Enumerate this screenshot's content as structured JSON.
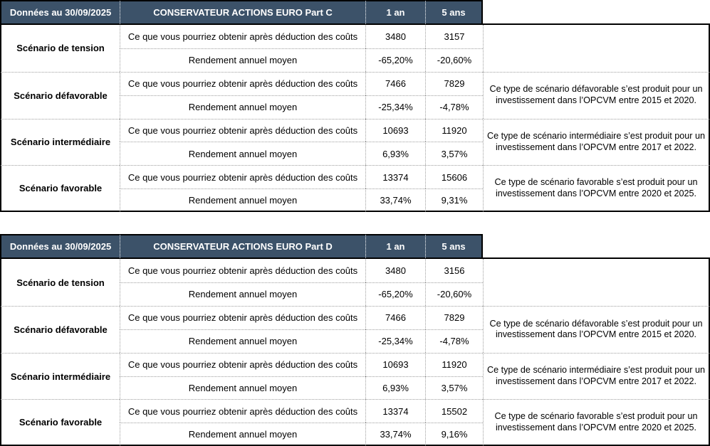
{
  "colors": {
    "header_bg": "#3C5269",
    "header_text": "#FFFFFF",
    "border_dark": "#000000",
    "border_dotted": "#9E9E9E",
    "body_text": "#000000"
  },
  "tables": [
    {
      "date_label": "Données au 30/09/2025",
      "title": "CONSERVATEUR ACTIONS EURO Part C",
      "col_1y": "1 an",
      "col_5y": "5 ans",
      "obtain_label": "Ce que vous pourriez obtenir après déduction des coûts",
      "yield_label": "Rendement annuel moyen",
      "scenarios": [
        {
          "name": "Scénario de tension",
          "obtain_1y": "3480",
          "obtain_5y": "3157",
          "yield_1y": "-65,20%",
          "yield_5y": "-20,60%",
          "comment": ""
        },
        {
          "name": "Scénario défavorable",
          "obtain_1y": "7466",
          "obtain_5y": "7829",
          "yield_1y": "-25,34%",
          "yield_5y": "-4,78%",
          "comment": "Ce type de scénario défavorable s’est produit pour un investissement dans l’OPCVM entre 2015 et 2020."
        },
        {
          "name": "Scénario intermédiaire",
          "obtain_1y": "10693",
          "obtain_5y": "11920",
          "yield_1y": "6,93%",
          "yield_5y": "3,57%",
          "comment": "Ce type de scénario intermédiaire s’est produit pour un investissement dans l’OPCVM entre 2017 et 2022."
        },
        {
          "name": "Scénario favorable",
          "obtain_1y": "13374",
          "obtain_5y": "15606",
          "yield_1y": "33,74%",
          "yield_5y": "9,31%",
          "comment": "Ce type de scénario favorable s’est produit pour un investissement dans l’OPCVM entre 2020 et 2025."
        }
      ]
    },
    {
      "date_label": "Données au 30/09/2025",
      "title": "CONSERVATEUR ACTIONS EURO Part D",
      "col_1y": "1 an",
      "col_5y": "5 ans",
      "obtain_label": "Ce que vous pourriez obtenir après déduction des coûts",
      "yield_label": "Rendement annuel moyen",
      "scenarios": [
        {
          "name": "Scénario de tension",
          "obtain_1y": "3480",
          "obtain_5y": "3156",
          "yield_1y": "-65,20%",
          "yield_5y": "-20,60%",
          "comment": ""
        },
        {
          "name": "Scénario défavorable",
          "obtain_1y": "7466",
          "obtain_5y": "7829",
          "yield_1y": "-25,34%",
          "yield_5y": "-4,78%",
          "comment": "Ce type de scénario défavorable s’est produit pour un investissement dans l’OPCVM entre 2015 et 2020."
        },
        {
          "name": "Scénario intermédiaire",
          "obtain_1y": "10693",
          "obtain_5y": "11920",
          "yield_1y": "6,93%",
          "yield_5y": "3,57%",
          "comment": "Ce type de scénario intermédiaire s’est produit pour un investissement dans l’OPCVM entre 2017 et 2022."
        },
        {
          "name": "Scénario favorable",
          "obtain_1y": "13374",
          "obtain_5y": "15502",
          "yield_1y": "33,74%",
          "yield_5y": "9,16%",
          "comment": "Ce type de scénario favorable s’est produit pour un investissement dans l’OPCVM entre 2020 et 2025."
        }
      ]
    }
  ]
}
